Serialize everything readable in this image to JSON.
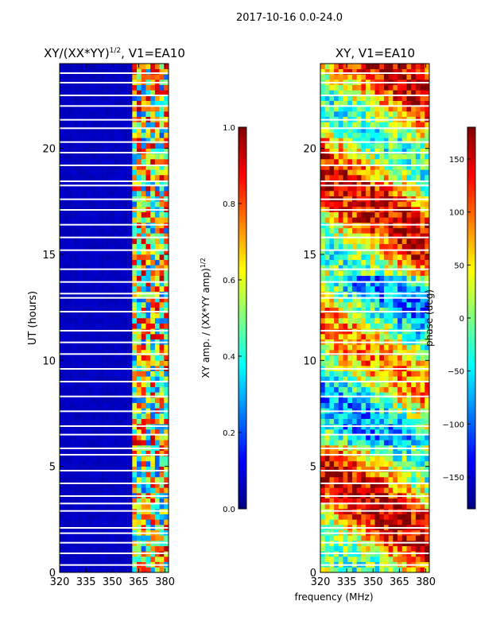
{
  "figure_title": "2017-10-16 0.0-24.0",
  "colors": {
    "jet": [
      "#00007f",
      "#0000ff",
      "#007fff",
      "#00ffff",
      "#7fff7f",
      "#ffff00",
      "#ff7f00",
      "#ff0000",
      "#7f0000"
    ],
    "frame": "#000000",
    "gap": "#ffffff"
  },
  "chart_data": [
    {
      "type": "heatmap",
      "title_base": "XY/(XX*YY)",
      "title_sup": "1/2",
      "title_suffix": ", V1=EA10",
      "xlabel": "",
      "ylabel": "UT (hours)",
      "x_ticks": [
        320,
        335,
        350,
        365,
        380
      ],
      "y_ticks": [
        0,
        5,
        10,
        15,
        20
      ],
      "xlim": [
        320,
        382
      ],
      "ylim": [
        0,
        24
      ],
      "colorbar": {
        "label_base": "XY amp. / (XX*YY amp)",
        "label_sup": "1/2",
        "ticks": [
          0.0,
          0.2,
          0.4,
          0.6,
          0.8,
          1.0
        ],
        "tick_labels": [
          "0.0",
          "0.2",
          "0.4",
          "0.6",
          "0.8",
          "1.0"
        ],
        "range": [
          0.0,
          1.0
        ]
      },
      "description_values": {
        "low_band_mhz": [
          320,
          362
        ],
        "low_band_level": 0.05,
        "high_band_mhz": [
          362,
          382
        ],
        "high_band_level_range": [
          0.2,
          0.95
        ]
      }
    },
    {
      "type": "heatmap",
      "title": "XY, V1=EA10",
      "xlabel": "frequency (MHz)",
      "ylabel": "",
      "x_ticks": [
        320,
        335,
        350,
        365,
        380
      ],
      "y_ticks": [
        0,
        5,
        10,
        15,
        20
      ],
      "xlim": [
        320,
        382
      ],
      "ylim": [
        0,
        24
      ],
      "colorbar": {
        "label": "phase (deg)",
        "ticks": [
          -150,
          -100,
          -50,
          0,
          50,
          100,
          150
        ],
        "tick_labels": [
          "−150",
          "−100",
          "−50",
          "0",
          "50",
          "100",
          "150"
        ],
        "range": [
          -180,
          180
        ]
      }
    }
  ],
  "flagged_hours": [
    0.35,
    0.9,
    1.4,
    1.85,
    2.1,
    2.9,
    3.25,
    3.6,
    4.2,
    4.8,
    5.55,
    5.85,
    6.5,
    6.9,
    7.6,
    8.3,
    9.0,
    9.6,
    10.3,
    10.85,
    11.4,
    12.3,
    12.95,
    13.15,
    13.7,
    14.3,
    15.2,
    15.8,
    16.4,
    17.1,
    17.6,
    18.25,
    18.45,
    19.2,
    19.8,
    20.3,
    20.95,
    21.35,
    22.0,
    22.5,
    23.1,
    23.55
  ]
}
